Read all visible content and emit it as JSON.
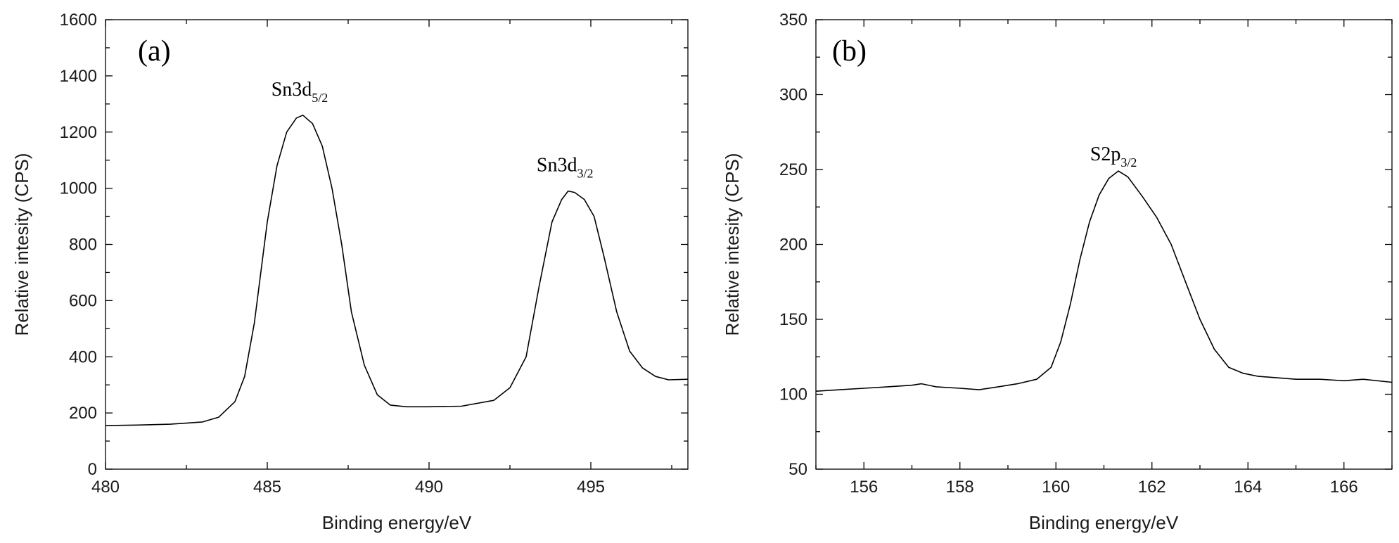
{
  "chart_data": [
    {
      "type": "line",
      "panel_label": "(a)",
      "xlabel": "Binding energy/eV",
      "ylabel": "Relative intesity (CPS)",
      "xlim": [
        480,
        498
      ],
      "ylim": [
        0,
        1600
      ],
      "xticks": [
        480,
        485,
        490,
        495
      ],
      "yticks": [
        0,
        200,
        400,
        600,
        800,
        1000,
        1200,
        1400,
        1600
      ],
      "grid": false,
      "series": [
        {
          "x": [
            480,
            481,
            482,
            483,
            483.5,
            484,
            484.3,
            484.6,
            485,
            485.3,
            485.6,
            485.9,
            486.1,
            486.4,
            486.7,
            487,
            487.3,
            487.6,
            488,
            488.4,
            488.8,
            489.3,
            490,
            491,
            492,
            492.5,
            493,
            493.4,
            493.8,
            494.1,
            494.3,
            494.5,
            494.8,
            495.1,
            495.4,
            495.8,
            496.2,
            496.6,
            497,
            497.4,
            498
          ],
          "y": [
            155,
            157,
            160,
            168,
            185,
            240,
            330,
            520,
            880,
            1080,
            1200,
            1250,
            1260,
            1230,
            1150,
            1000,
            800,
            560,
            370,
            265,
            228,
            222,
            222,
            224,
            245,
            290,
            400,
            650,
            880,
            960,
            990,
            985,
            960,
            900,
            760,
            560,
            420,
            360,
            330,
            318,
            320
          ]
        }
      ],
      "annotations": [
        {
          "text": "Sn3d",
          "sub": "5/2",
          "x": 486,
          "y": 1330
        },
        {
          "text": "Sn3d",
          "sub": "3/2",
          "x": 494.2,
          "y": 1060
        }
      ]
    },
    {
      "type": "line",
      "panel_label": "(b)",
      "xlabel": "Binding energy/eV",
      "ylabel": "Relative intesity (CPS)",
      "xlim": [
        155,
        167
      ],
      "ylim": [
        50,
        350
      ],
      "xticks": [
        156,
        158,
        160,
        162,
        164,
        166
      ],
      "yticks": [
        50,
        100,
        150,
        200,
        250,
        300,
        350
      ],
      "grid": false,
      "series": [
        {
          "x": [
            155,
            155.5,
            156,
            156.5,
            157,
            157.2,
            157.5,
            158,
            158.4,
            158.8,
            159.2,
            159.6,
            159.9,
            160.1,
            160.3,
            160.5,
            160.7,
            160.9,
            161.1,
            161.3,
            161.5,
            161.8,
            162.1,
            162.4,
            162.7,
            163,
            163.3,
            163.6,
            163.9,
            164.2,
            164.6,
            165,
            165.5,
            166,
            166.4,
            167
          ],
          "y": [
            102,
            103,
            104,
            105,
            106,
            107,
            105,
            104,
            103,
            105,
            107,
            110,
            118,
            135,
            160,
            190,
            215,
            233,
            244,
            249,
            245,
            232,
            218,
            200,
            175,
            150,
            130,
            118,
            114,
            112,
            111,
            110,
            110,
            109,
            110,
            108
          ]
        }
      ],
      "annotations": [
        {
          "text": "S2p",
          "sub": "3/2",
          "x": 161.2,
          "y": 256
        }
      ]
    }
  ]
}
